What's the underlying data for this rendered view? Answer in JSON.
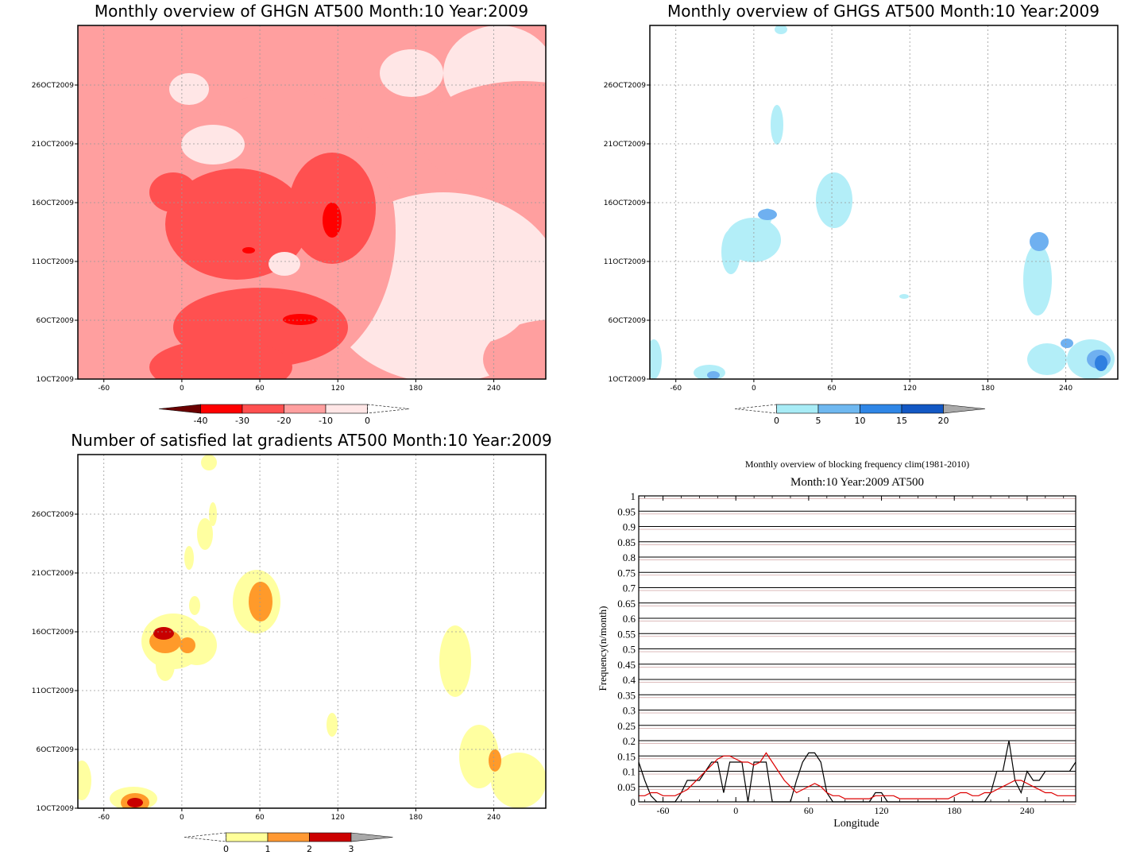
{
  "chart_data": [
    {
      "type": "heatmap",
      "title": "Monthly overview of GHGN AT500 Month:10 Year:2009",
      "x_ticks": [
        "-60",
        "0",
        "60",
        "120",
        "180",
        "240"
      ],
      "y_ticks": [
        "1OCT2009",
        "6OCT2009",
        "11OCT2009",
        "16OCT2009",
        "21OCT2009",
        "26OCT2009"
      ],
      "xlim": [
        -80,
        280
      ],
      "colorbar": {
        "labels": [
          "-40",
          "-30",
          "-20",
          "-10",
          "0"
        ],
        "colors": [
          "#6b0000",
          "#ff0000",
          "#ff5050",
          "#ff9f9f",
          "#ffe6e6"
        ]
      },
      "levels": [
        "#ffe6e6",
        "#ff9f9f",
        "#ff5050",
        "#ff0000"
      ],
      "blobs": [
        {
          "cx": 260,
          "cy": 260,
          "rx": 140,
          "ry": 180,
          "l": 1
        },
        {
          "cx": 200,
          "cy": 250,
          "rx": 90,
          "ry": 70,
          "l": 2
        },
        {
          "cx": 320,
          "cy": 230,
          "rx": 55,
          "ry": 70,
          "l": 2
        },
        {
          "cx": 230,
          "cy": 380,
          "rx": 110,
          "ry": 50,
          "l": 2
        },
        {
          "cx": 180,
          "cy": 430,
          "rx": 90,
          "ry": 35,
          "l": 2
        },
        {
          "cx": 120,
          "cy": 210,
          "rx": 30,
          "ry": 25,
          "l": 2
        },
        {
          "cx": 320,
          "cy": 245,
          "rx": 12,
          "ry": 22,
          "l": 3
        },
        {
          "cx": 280,
          "cy": 370,
          "rx": 22,
          "ry": 7,
          "l": 3
        },
        {
          "cx": 215,
          "cy": 283,
          "rx": 8,
          "ry": 4,
          "l": 3
        },
        {
          "cx": 600,
          "cy": 405,
          "rx": 25,
          "ry": 25,
          "l": 2
        },
        {
          "cx": 660,
          "cy": 230,
          "rx": 25,
          "ry": 40,
          "l": 2
        },
        {
          "cx": 560,
          "cy": 140,
          "rx": 130,
          "ry": 70,
          "l": 1
        },
        {
          "cx": 600,
          "cy": 420,
          "rx": 90,
          "ry": 50,
          "l": 1
        },
        {
          "cx": 420,
          "cy": 60,
          "rx": 40,
          "ry": 30,
          "l": 0
        },
        {
          "cx": 500,
          "cy": 340,
          "rx": 70,
          "ry": 60,
          "l": 0
        },
        {
          "cx": 170,
          "cy": 150,
          "rx": 40,
          "ry": 25,
          "l": 0
        },
        {
          "cx": 260,
          "cy": 300,
          "rx": 20,
          "ry": 15,
          "l": 0
        },
        {
          "cx": 140,
          "cy": 80,
          "rx": 25,
          "ry": 20,
          "l": 0
        },
        {
          "cx": 640,
          "cy": 330,
          "rx": 40,
          "ry": 40,
          "l": 0
        }
      ]
    },
    {
      "type": "heatmap",
      "title": "Monthly overview of GHGS AT500 Month:10 Year:2009",
      "x_ticks": [
        "-60",
        "0",
        "60",
        "120",
        "180",
        "240"
      ],
      "y_ticks": [
        "1OCT2009",
        "6OCT2009",
        "11OCT2009",
        "16OCT2009",
        "21OCT2009",
        "26OCT2009"
      ],
      "xlim": [
        -80,
        280
      ],
      "colorbar": {
        "labels": [
          "0",
          "5",
          "10",
          "15",
          "20"
        ],
        "colors": [
          "#a8ecf6",
          "#6fb8f0",
          "#2f86e6",
          "#1358c4"
        ]
      },
      "levels": [
        "#b3eef8",
        "#6fb0f0",
        "#2f7fe0"
      ],
      "blobs": [
        {
          "cx": 232,
          "cy": 220,
          "rx": 23,
          "ry": 35,
          "l": 0
        },
        {
          "cx": 130,
          "cy": 270,
          "rx": 35,
          "ry": 28,
          "l": 0
        },
        {
          "cx": 102,
          "cy": 285,
          "rx": 12,
          "ry": 28,
          "l": 0
        },
        {
          "cx": 148,
          "cy": 240,
          "rx": 6,
          "ry": 10,
          "l": 0
        },
        {
          "cx": 160,
          "cy": 125,
          "rx": 8,
          "ry": 25,
          "l": 0
        },
        {
          "cx": 165,
          "cy": 5,
          "rx": 8,
          "ry": 6,
          "l": 0
        },
        {
          "cx": 488,
          "cy": 320,
          "rx": 18,
          "ry": 45,
          "l": 0
        },
        {
          "cx": 500,
          "cy": 420,
          "rx": 25,
          "ry": 20,
          "l": 0
        },
        {
          "cx": 555,
          "cy": 420,
          "rx": 30,
          "ry": 25,
          "l": 0
        },
        {
          "cx": 75,
          "cy": 437,
          "rx": 20,
          "ry": 10,
          "l": 0
        },
        {
          "cx": 5,
          "cy": 420,
          "rx": 10,
          "ry": 25,
          "l": 0
        },
        {
          "cx": 320,
          "cy": 341,
          "rx": 6,
          "ry": 3,
          "l": 0
        },
        {
          "cx": 148,
          "cy": 238,
          "rx": 12,
          "ry": 7,
          "l": 1
        },
        {
          "cx": 490,
          "cy": 272,
          "rx": 12,
          "ry": 12,
          "l": 1
        },
        {
          "cx": 525,
          "cy": 400,
          "rx": 8,
          "ry": 6,
          "l": 1
        },
        {
          "cx": 565,
          "cy": 420,
          "rx": 15,
          "ry": 12,
          "l": 1
        },
        {
          "cx": 80,
          "cy": 440,
          "rx": 8,
          "ry": 5,
          "l": 1
        },
        {
          "cx": 568,
          "cy": 425,
          "rx": 8,
          "ry": 10,
          "l": 2
        }
      ]
    },
    {
      "type": "heatmap",
      "title": "Number of satisfied lat gradients AT500 Month:10 Year:2009",
      "x_ticks": [
        "-60",
        "0",
        "60",
        "120",
        "180",
        "240"
      ],
      "y_ticks": [
        "1OCT2009",
        "6OCT2009",
        "11OCT2009",
        "16OCT2009",
        "21OCT2009",
        "26OCT2009"
      ],
      "xlim": [
        -80,
        280
      ],
      "colorbar": {
        "labels": [
          "0",
          "1",
          "2",
          "3"
        ],
        "colors": [
          "#ffff99",
          "#ff9933",
          "#cc0000"
        ]
      },
      "levels": [
        "#ffffa0",
        "#ff9a2a",
        "#c80000"
      ],
      "blobs": [
        {
          "cx": 225,
          "cy": 185,
          "rx": 30,
          "ry": 40,
          "l": 0
        },
        {
          "cx": 120,
          "cy": 235,
          "rx": 40,
          "ry": 35,
          "l": 0
        },
        {
          "cx": 150,
          "cy": 240,
          "rx": 25,
          "ry": 25,
          "l": 0
        },
        {
          "cx": 110,
          "cy": 265,
          "rx": 12,
          "ry": 20,
          "l": 0
        },
        {
          "cx": 70,
          "cy": 433,
          "rx": 30,
          "ry": 15,
          "l": 0
        },
        {
          "cx": 475,
          "cy": 260,
          "rx": 20,
          "ry": 45,
          "l": 0
        },
        {
          "cx": 505,
          "cy": 380,
          "rx": 25,
          "ry": 40,
          "l": 0
        },
        {
          "cx": 555,
          "cy": 410,
          "rx": 35,
          "ry": 35,
          "l": 0
        },
        {
          "cx": 160,
          "cy": 100,
          "rx": 10,
          "ry": 20,
          "l": 0
        },
        {
          "cx": 140,
          "cy": 130,
          "rx": 6,
          "ry": 15,
          "l": 0
        },
        {
          "cx": 165,
          "cy": 10,
          "rx": 10,
          "ry": 10,
          "l": 0
        },
        {
          "cx": 170,
          "cy": 75,
          "rx": 5,
          "ry": 15,
          "l": 0
        },
        {
          "cx": 147,
          "cy": 190,
          "rx": 7,
          "ry": 12,
          "l": 0
        },
        {
          "cx": 320,
          "cy": 340,
          "rx": 7,
          "ry": 15,
          "l": 0
        },
        {
          "cx": 5,
          "cy": 410,
          "rx": 12,
          "ry": 25,
          "l": 0
        },
        {
          "cx": 230,
          "cy": 185,
          "rx": 15,
          "ry": 25,
          "l": 1
        },
        {
          "cx": 110,
          "cy": 235,
          "rx": 20,
          "ry": 15,
          "l": 1
        },
        {
          "cx": 138,
          "cy": 240,
          "rx": 10,
          "ry": 10,
          "l": 1
        },
        {
          "cx": 72,
          "cy": 438,
          "rx": 18,
          "ry": 12,
          "l": 1
        },
        {
          "cx": 525,
          "cy": 385,
          "rx": 8,
          "ry": 14,
          "l": 1
        },
        {
          "cx": 108,
          "cy": 225,
          "rx": 13,
          "ry": 8,
          "l": 2
        },
        {
          "cx": 72,
          "cy": 438,
          "rx": 10,
          "ry": 6,
          "l": 2
        }
      ]
    },
    {
      "type": "line",
      "title": "Monthly overview of blocking frequency clim(1981-2010)",
      "subtitle": "Month:10 Year:2009  AT500",
      "xlabel": "Longitude",
      "ylabel": "Frequency(n/month)",
      "xlim": [
        -80,
        280
      ],
      "ylim": [
        0,
        1
      ],
      "x_ticks": [
        "-60",
        "0",
        "60",
        "120",
        "180",
        "240"
      ],
      "y_ticks": [
        "0",
        "0.05",
        "0.1",
        "0.15",
        "0.2",
        "0.25",
        "0.3",
        "0.35",
        "0.4",
        "0.45",
        "0.5",
        "0.55",
        "0.6",
        "0.65",
        "0.7",
        "0.75",
        "0.8",
        "0.85",
        "0.9",
        "0.95",
        "1"
      ],
      "series": [
        {
          "color": "#000000",
          "x": [
            -80,
            -75,
            -70,
            -65,
            -60,
            -55,
            -50,
            -45,
            -40,
            -35,
            -30,
            -25,
            -20,
            -15,
            -10,
            -5,
            0,
            5,
            10,
            15,
            20,
            25,
            30,
            35,
            40,
            45,
            50,
            55,
            60,
            65,
            70,
            75,
            80,
            85,
            90,
            95,
            100,
            105,
            110,
            115,
            120,
            125,
            130,
            135,
            140,
            145,
            150,
            155,
            160,
            165,
            170,
            175,
            180,
            185,
            190,
            195,
            200,
            205,
            210,
            215,
            220,
            225,
            230,
            235,
            240,
            245,
            250,
            255,
            260,
            265,
            270,
            275,
            280
          ],
          "y": [
            0.13,
            0.07,
            0.02,
            0.0,
            0.0,
            0.0,
            0.0,
            0.03,
            0.07,
            0.07,
            0.07,
            0.1,
            0.13,
            0.13,
            0.03,
            0.13,
            0.13,
            0.13,
            0.0,
            0.13,
            0.13,
            0.13,
            0.0,
            0.0,
            0.0,
            0.0,
            0.07,
            0.13,
            0.16,
            0.16,
            0.13,
            0.03,
            0.0,
            0.0,
            0.0,
            0.0,
            0.0,
            0.0,
            0.0,
            0.03,
            0.03,
            0.0,
            0.0,
            0.0,
            0.0,
            0.0,
            0.0,
            0.0,
            0.0,
            0.0,
            0.0,
            0.0,
            0.0,
            0.0,
            0.0,
            0.0,
            0.0,
            0.0,
            0.03,
            0.1,
            0.1,
            0.2,
            0.07,
            0.03,
            0.1,
            0.07,
            0.07,
            0.1,
            0.1,
            0.1,
            0.1,
            0.1,
            0.13
          ]
        },
        {
          "color": "#dd0000",
          "x": [
            -80,
            -75,
            -70,
            -65,
            -60,
            -55,
            -50,
            -45,
            -40,
            -35,
            -30,
            -25,
            -20,
            -15,
            -10,
            -5,
            0,
            5,
            10,
            15,
            20,
            25,
            30,
            35,
            40,
            45,
            50,
            55,
            60,
            65,
            70,
            75,
            80,
            85,
            90,
            95,
            100,
            105,
            110,
            115,
            120,
            125,
            130,
            135,
            140,
            145,
            150,
            155,
            160,
            165,
            170,
            175,
            180,
            185,
            190,
            195,
            200,
            205,
            210,
            215,
            220,
            225,
            230,
            235,
            240,
            245,
            250,
            255,
            260,
            265,
            270,
            275,
            280
          ],
          "y": [
            0.02,
            0.02,
            0.03,
            0.03,
            0.02,
            0.02,
            0.02,
            0.03,
            0.04,
            0.06,
            0.08,
            0.1,
            0.12,
            0.14,
            0.15,
            0.15,
            0.14,
            0.13,
            0.13,
            0.12,
            0.13,
            0.16,
            0.13,
            0.1,
            0.07,
            0.05,
            0.03,
            0.04,
            0.05,
            0.06,
            0.05,
            0.03,
            0.02,
            0.02,
            0.01,
            0.01,
            0.01,
            0.01,
            0.01,
            0.02,
            0.02,
            0.02,
            0.02,
            0.01,
            0.01,
            0.01,
            0.01,
            0.01,
            0.01,
            0.01,
            0.01,
            0.01,
            0.02,
            0.03,
            0.03,
            0.02,
            0.02,
            0.03,
            0.03,
            0.04,
            0.05,
            0.06,
            0.07,
            0.07,
            0.06,
            0.05,
            0.04,
            0.03,
            0.03,
            0.02,
            0.02,
            0.02,
            0.02
          ]
        }
      ]
    }
  ]
}
